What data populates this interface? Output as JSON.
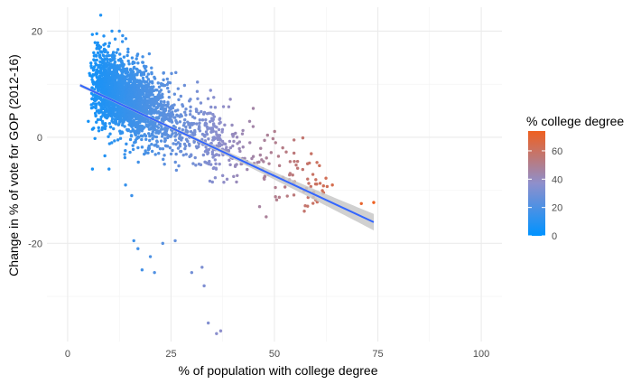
{
  "chart_data": {
    "type": "scatter",
    "xlabel": "% of population with college degree",
    "ylabel": "Change in % of vote for GOP (2012-16)",
    "xlim": [
      -5,
      105
    ],
    "ylim": [
      -38.5,
      24.5
    ],
    "x_ticks": [
      0,
      25,
      50,
      75,
      100
    ],
    "y_ticks": [
      -20,
      0,
      20
    ],
    "x_tick_labels": [
      "0",
      "25",
      "50",
      "75",
      "100"
    ],
    "y_tick_labels": [
      "-20",
      "0",
      "20"
    ],
    "grid": true,
    "legend_position": "right",
    "color_scale": {
      "title": "% college degree",
      "variable": "x",
      "domain": [
        0,
        74
      ],
      "ticks": [
        0,
        20,
        40,
        60
      ],
      "tick_labels": [
        "0",
        "20",
        "40",
        "60"
      ],
      "low_color": "#0093ff",
      "mid_color": "#8e8fcc",
      "high_color": "#ef6020"
    },
    "trend_line": {
      "type": "linear",
      "x": [
        3,
        74
      ],
      "y": [
        9.8,
        -16.0
      ],
      "color": "#3366ff",
      "ribbon_color": "#c8c8c8"
    },
    "notable_points": [
      {
        "x": 8,
        "y": 23
      },
      {
        "x": 11.5,
        "y": 18.5
      },
      {
        "x": 12.5,
        "y": 20
      },
      {
        "x": 14,
        "y": -9
      },
      {
        "x": 15.5,
        "y": -11
      },
      {
        "x": 16,
        "y": -19.5
      },
      {
        "x": 17,
        "y": -21
      },
      {
        "x": 18,
        "y": -25
      },
      {
        "x": 20,
        "y": -22.5
      },
      {
        "x": 21,
        "y": -25.5
      },
      {
        "x": 23,
        "y": -20
      },
      {
        "x": 26,
        "y": -19.5
      },
      {
        "x": 30,
        "y": -25.5
      },
      {
        "x": 32.5,
        "y": -24.5
      },
      {
        "x": 33,
        "y": -28
      },
      {
        "x": 34,
        "y": -35
      },
      {
        "x": 36,
        "y": -37
      },
      {
        "x": 37,
        "y": -36.5
      },
      {
        "x": 48,
        "y": -15
      },
      {
        "x": 71,
        "y": -12.5
      },
      {
        "x": 74,
        "y": -12.3
      },
      {
        "x": 5,
        "y": 3
      },
      {
        "x": 6,
        "y": 1.5
      },
      {
        "x": 7.5,
        "y": 1.8
      },
      {
        "x": 6,
        "y": -6
      },
      {
        "x": 10,
        "y": -6
      },
      {
        "x": 9,
        "y": -3.5
      },
      {
        "x": 44,
        "y": 3
      },
      {
        "x": 52,
        "y": -2
      },
      {
        "x": 58,
        "y": -5
      },
      {
        "x": 60,
        "y": -8
      },
      {
        "x": 64,
        "y": -9
      }
    ],
    "dense_cloud": {
      "description_free": true,
      "count": 2400,
      "seed": 20161108
    }
  }
}
